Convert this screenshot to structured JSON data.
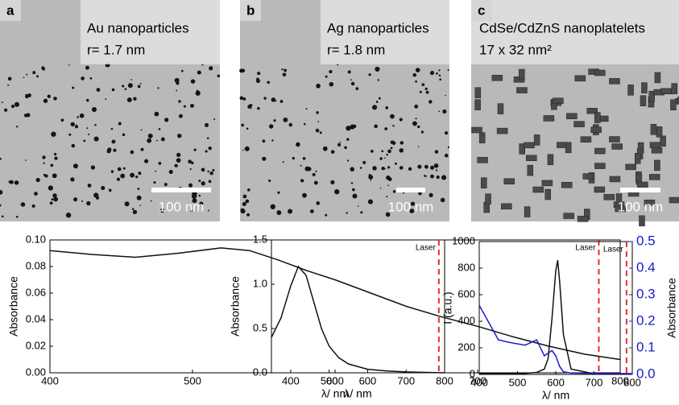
{
  "panels": [
    {
      "letter": "a",
      "title": "Au nanoparticles",
      "subtitle": "r= 1.7 nm",
      "scale": "100 nm"
    },
    {
      "letter": "b",
      "title": "Ag nanoparticles",
      "subtitle": "r= 1.8 nm",
      "scale": "100 nm"
    },
    {
      "letter": "c",
      "title": "CdSe/CdZnS nanoplatelets",
      "subtitle": "17 x 32 nm²",
      "scale": "100 nm"
    }
  ],
  "chart_data": [
    {
      "type": "line",
      "xlabel": "λ/ nm",
      "ylabel": "Absorbance",
      "x": [
        400,
        430,
        460,
        490,
        520,
        540,
        560,
        580,
        600,
        625,
        650,
        675,
        700,
        725,
        750,
        775,
        800
      ],
      "series": [
        {
          "color": "#111111",
          "values": [
            0.092,
            0.089,
            0.087,
            0.09,
            0.094,
            0.092,
            0.085,
            0.077,
            0.07,
            0.06,
            0.05,
            0.042,
            0.035,
            0.027,
            0.02,
            0.014,
            0.01
          ]
        }
      ],
      "xlim": [
        400,
        800
      ],
      "xticks": [
        400,
        500,
        600,
        700,
        800
      ],
      "ylim": [
        0,
        0.1
      ],
      "yticks": [
        {
          "value": 0,
          "label": "0.00"
        },
        0.02,
        0.04,
        0.06,
        0.08,
        {
          "value": 0.1,
          "label": "0.10"
        }
      ],
      "vlines": [
        {
          "x": 785,
          "label": "Laser",
          "color": "#e03030"
        }
      ]
    },
    {
      "type": "line",
      "xlabel": "λ/ nm",
      "ylabel": "Absorbance",
      "x": [
        350,
        375,
        400,
        420,
        440,
        460,
        480,
        500,
        525,
        550,
        600,
        650,
        700,
        800
      ],
      "series": [
        {
          "color": "#111111",
          "values": [
            0.4,
            0.62,
            0.98,
            1.2,
            1.1,
            0.8,
            0.5,
            0.3,
            0.17,
            0.1,
            0.04,
            0.02,
            0.01,
            0.0
          ]
        }
      ],
      "xlim": [
        350,
        800
      ],
      "xticks": [
        400,
        500,
        600,
        700,
        800
      ],
      "ylim": [
        0,
        1.5
      ],
      "yticks": [
        {
          "value": 0,
          "label": "0.0"
        },
        0.5,
        {
          "value": 1,
          "label": "1.0"
        },
        1.5
      ],
      "vlines": [
        {
          "x": 785,
          "label": "Laser",
          "color": "#e03030"
        }
      ]
    },
    {
      "type": "line",
      "xlabel": "λ/ nm",
      "ylabel": "I (a.u.)",
      "y2label": "Absorbance",
      "y2color": "#1a1acc",
      "x": [
        400,
        450,
        480,
        520,
        550,
        570,
        580,
        590,
        600,
        605,
        610,
        620,
        640,
        700,
        800
      ],
      "series": [
        {
          "color": "#111111",
          "values": [
            5,
            5,
            5,
            8,
            15,
            40,
            120,
            420,
            780,
            860,
            700,
            300,
            40,
            5,
            3
          ]
        },
        {
          "color": "#1a1acc",
          "axis": "y2",
          "values": [
            0.26,
            0.13,
            0.12,
            0.11,
            0.13,
            0.07,
            0.08,
            0.09,
            0.07,
            0.05,
            0.03,
            0.01,
            0.005,
            0.004,
            0.003
          ]
        }
      ],
      "xlim": [
        400,
        800
      ],
      "xticks": [
        400,
        500,
        600,
        700,
        800
      ],
      "ylim": [
        0,
        1000
      ],
      "yticks": [
        0,
        200,
        400,
        600,
        800,
        1000
      ],
      "y2lim": [
        0,
        0.5
      ],
      "y2ticks": [
        {
          "value": 0,
          "label": "0.0"
        },
        0.1,
        0.2,
        0.3,
        0.4,
        0.5
      ],
      "vlines": [
        {
          "x": 785,
          "label": "Laser",
          "color": "#e03030"
        }
      ]
    }
  ]
}
